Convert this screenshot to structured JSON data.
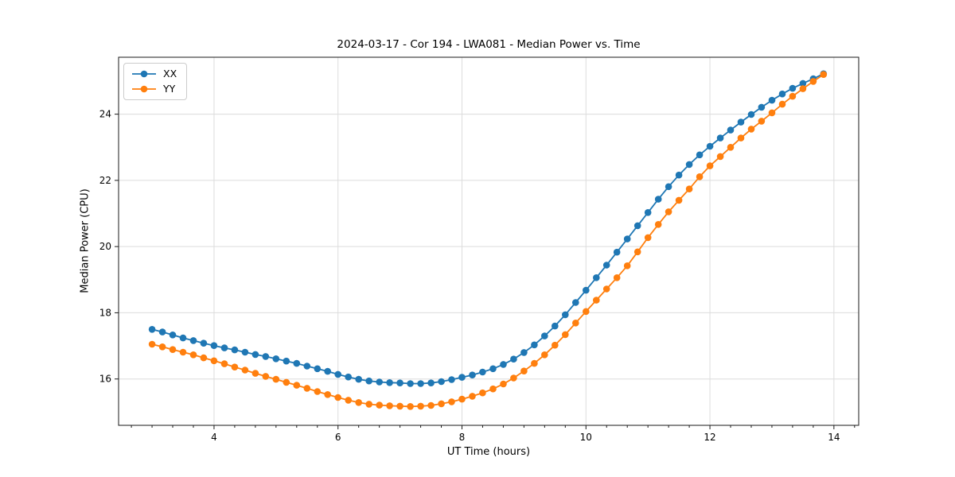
{
  "chart_data": {
    "type": "line",
    "title": "2024-03-17 - Cor 194 - LWA081 - Median Power vs. Time",
    "xlabel": "UT Time (hours)",
    "ylabel": "Median Power (CPU)",
    "xlim": [
      2.46,
      14.4
    ],
    "ylim": [
      14.6,
      25.72
    ],
    "xticks": [
      4,
      6,
      8,
      10,
      12,
      14
    ],
    "yticks": [
      16,
      18,
      20,
      22,
      24
    ],
    "x_minor_step": 0.33333,
    "grid": true,
    "legend_position": "upper left",
    "x": [
      3.0,
      3.167,
      3.333,
      3.5,
      3.667,
      3.833,
      4.0,
      4.167,
      4.333,
      4.5,
      4.667,
      4.833,
      5.0,
      5.167,
      5.333,
      5.5,
      5.667,
      5.833,
      6.0,
      6.167,
      6.333,
      6.5,
      6.667,
      6.833,
      7.0,
      7.167,
      7.333,
      7.5,
      7.667,
      7.833,
      8.0,
      8.167,
      8.333,
      8.5,
      8.667,
      8.833,
      9.0,
      9.167,
      9.333,
      9.5,
      9.667,
      9.833,
      10.0,
      10.167,
      10.333,
      10.5,
      10.667,
      10.833,
      11.0,
      11.167,
      11.333,
      11.5,
      11.667,
      11.833,
      12.0,
      12.167,
      12.333,
      12.5,
      12.667,
      12.833,
      13.0,
      13.167,
      13.333,
      13.5,
      13.667,
      13.833
    ],
    "series": [
      {
        "name": "XX",
        "color": "#1f77b4",
        "values": [
          17.5,
          17.42,
          17.33,
          17.24,
          17.16,
          17.08,
          17.01,
          16.94,
          16.88,
          16.81,
          16.74,
          16.68,
          16.61,
          16.54,
          16.47,
          16.39,
          16.31,
          16.23,
          16.14,
          16.06,
          15.99,
          15.94,
          15.91,
          15.89,
          15.88,
          15.86,
          15.86,
          15.88,
          15.92,
          15.98,
          16.05,
          16.12,
          16.21,
          16.31,
          16.44,
          16.6,
          16.8,
          17.03,
          17.3,
          17.6,
          17.94,
          18.31,
          18.68,
          19.06,
          19.44,
          19.83,
          20.23,
          20.63,
          21.03,
          21.43,
          21.81,
          22.16,
          22.48,
          22.77,
          23.03,
          23.28,
          23.52,
          23.76,
          23.99,
          24.21,
          24.42,
          24.61,
          24.78,
          24.93,
          25.07,
          25.22
        ]
      },
      {
        "name": "YY",
        "color": "#ff7f0e",
        "values": [
          17.05,
          16.97,
          16.89,
          16.81,
          16.73,
          16.64,
          16.55,
          16.46,
          16.36,
          16.27,
          16.17,
          16.08,
          15.99,
          15.9,
          15.81,
          15.72,
          15.62,
          15.53,
          15.44,
          15.36,
          15.29,
          15.24,
          15.21,
          15.19,
          15.18,
          15.17,
          15.18,
          15.2,
          15.25,
          15.31,
          15.39,
          15.48,
          15.58,
          15.7,
          15.85,
          16.03,
          16.24,
          16.47,
          16.73,
          17.02,
          17.34,
          17.69,
          18.04,
          18.38,
          18.72,
          19.06,
          19.42,
          19.84,
          20.27,
          20.67,
          21.05,
          21.4,
          21.74,
          22.11,
          22.44,
          22.72,
          23.0,
          23.28,
          23.55,
          23.79,
          24.04,
          24.3,
          24.54,
          24.77,
          24.99,
          25.2
        ]
      }
    ],
    "style": {
      "grid_color": "#dcdcdc",
      "spine_color": "#1a1a1a",
      "background": "#ffffff"
    }
  }
}
